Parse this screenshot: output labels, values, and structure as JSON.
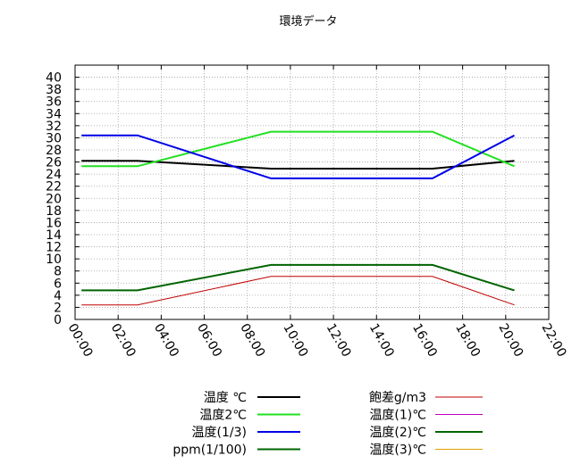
{
  "chart_data": {
    "type": "line",
    "title": "環境データ",
    "xlabel": "",
    "ylabel": "",
    "xlim": [
      0,
      22
    ],
    "ylim": [
      0,
      42
    ],
    "x_ticks": [
      "00:00",
      "02:00",
      "04:00",
      "06:00",
      "08:00",
      "10:00",
      "12:00",
      "14:00",
      "16:00",
      "18:00",
      "20:00",
      "22:00"
    ],
    "y_ticks": [
      0,
      2,
      4,
      6,
      8,
      10,
      12,
      14,
      16,
      18,
      20,
      22,
      24,
      26,
      28,
      30,
      32,
      34,
      36,
      38,
      40
    ],
    "grid": true,
    "legend_position": "bottom",
    "series": [
      {
        "name": "温度 ℃",
        "color": "#000000",
        "x": [
          0.3,
          2.9,
          9.1,
          16.6,
          20.4
        ],
        "y": [
          26.2,
          26.2,
          24.9,
          24.9,
          26.2
        ]
      },
      {
        "name": "温度2℃",
        "color": "#22e022",
        "x": [
          0.3,
          2.9,
          9.1,
          16.6,
          20.4
        ],
        "y": [
          25.3,
          25.3,
          31.0,
          31.0,
          25.3
        ]
      },
      {
        "name": "温度(1/3)",
        "color": "#0000e6",
        "x": [
          0.3,
          2.9,
          9.1,
          16.6,
          20.4
        ],
        "y": [
          30.4,
          30.4,
          23.3,
          23.3,
          30.4
        ]
      },
      {
        "name": "ppm(1/100)",
        "color": "#006400",
        "x": [
          0.3,
          2.9,
          9.1,
          16.6,
          20.4
        ],
        "y": [
          4.8,
          4.8,
          9.0,
          9.0,
          4.8
        ]
      },
      {
        "name": "飽差g/m3",
        "color": "#c00000",
        "x": [
          0.3,
          2.9,
          9.1,
          16.6,
          20.4
        ],
        "y": [
          2.4,
          2.4,
          7.1,
          7.1,
          2.4
        ]
      },
      {
        "name": "温度(1)℃",
        "color": "#c000c0",
        "x": [],
        "y": []
      },
      {
        "name": "温度(2)℃",
        "color": "#006400",
        "x": [],
        "y": []
      },
      {
        "name": "温度(3)℃",
        "color": "#e0a000",
        "x": [],
        "y": []
      }
    ]
  }
}
